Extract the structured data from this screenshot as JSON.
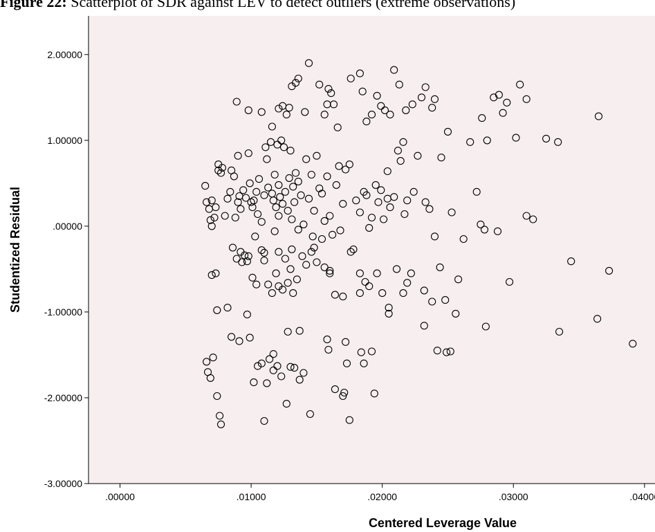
{
  "caption": {
    "lead": "Figure 22:",
    "text": " Scatterplot of SDR against LEV to detect outliers (extreme observations)"
  },
  "chart_data": {
    "type": "scatter",
    "title": "",
    "xlabel": "Centered Leverage Value",
    "ylabel": "Studentized Residual",
    "xlim": [
      -0.0024,
      0.0408
    ],
    "ylim": [
      -3.0,
      2.45
    ],
    "xticks": [
      0.0,
      0.01,
      0.02,
      0.03,
      0.04
    ],
    "xtick_labels": [
      ".00000",
      ".01000",
      ".02000",
      ".03000",
      ".04000"
    ],
    "yticks": [
      -3.0,
      -2.0,
      -1.0,
      0.0,
      1.0,
      2.0
    ],
    "ytick_labels": [
      "-3.00000",
      "-2.00000",
      "-1.00000",
      ".00000",
      "1.00000",
      "2.00000"
    ],
    "grid": false,
    "colors": {
      "plot_bg": "#f6eeef",
      "marker": "#000000",
      "axis": "#000000"
    },
    "points": [
      [
        0.0065,
        0.47
      ],
      [
        0.0066,
        0.28
      ],
      [
        0.0068,
        0.2
      ],
      [
        0.0069,
        0.07
      ],
      [
        0.007,
        0.0
      ],
      [
        0.007,
        0.3
      ],
      [
        0.0072,
        0.1
      ],
      [
        0.0073,
        0.22
      ],
      [
        0.0075,
        0.65
      ],
      [
        0.0075,
        0.72
      ],
      [
        0.0077,
        0.62
      ],
      [
        0.0078,
        0.68
      ],
      [
        0.008,
        0.12
      ],
      [
        0.0082,
        0.32
      ],
      [
        0.0084,
        0.4
      ],
      [
        0.0085,
        0.65
      ],
      [
        0.0087,
        0.58
      ],
      [
        0.0088,
        0.1
      ],
      [
        0.009,
        0.28
      ],
      [
        0.009,
        0.82
      ],
      [
        0.0091,
        0.35
      ],
      [
        0.0092,
        0.2
      ],
      [
        0.0094,
        0.42
      ],
      [
        0.0096,
        0.33
      ],
      [
        0.0098,
        0.85
      ],
      [
        0.0099,
        0.5
      ],
      [
        0.01,
        0.28
      ],
      [
        0.0101,
        0.22
      ],
      [
        0.0102,
        0.3
      ],
      [
        0.0104,
        0.4
      ],
      [
        0.0105,
        0.14
      ],
      [
        0.0106,
        0.55
      ],
      [
        0.0108,
        0.05
      ],
      [
        0.011,
        0.36
      ],
      [
        0.0111,
        0.92
      ],
      [
        0.0112,
        0.78
      ],
      [
        0.0113,
        0.45
      ],
      [
        0.0115,
        0.98
      ],
      [
        0.0116,
        0.38
      ],
      [
        0.0117,
        0.3
      ],
      [
        0.0118,
        0.6
      ],
      [
        0.0119,
        0.22
      ],
      [
        0.012,
        0.95
      ],
      [
        0.0121,
        0.48
      ],
      [
        0.0122,
        0.34
      ],
      [
        0.0123,
        1.0
      ],
      [
        0.0124,
        0.26
      ],
      [
        0.0125,
        0.92
      ],
      [
        0.0126,
        0.4
      ],
      [
        0.0128,
        0.18
      ],
      [
        0.0129,
        0.56
      ],
      [
        0.013,
        0.88
      ],
      [
        0.0131,
        0.08
      ],
      [
        0.0132,
        0.46
      ],
      [
        0.0133,
        0.28
      ],
      [
        0.0134,
        0.62
      ],
      [
        0.0136,
        0.52
      ],
      [
        0.0138,
        0.36
      ],
      [
        0.014,
        0.02
      ],
      [
        0.0142,
        0.78
      ],
      [
        0.0144,
        0.32
      ],
      [
        0.0146,
        0.6
      ],
      [
        0.0148,
        0.18
      ],
      [
        0.015,
        0.82
      ],
      [
        0.0152,
        0.44
      ],
      [
        0.0154,
        0.38
      ],
      [
        0.0156,
        0.06
      ],
      [
        0.0158,
        0.58
      ],
      [
        0.016,
        0.12
      ],
      [
        0.0162,
        -0.1
      ],
      [
        0.0165,
        0.48
      ],
      [
        0.0167,
        0.7
      ],
      [
        0.017,
        0.26
      ],
      [
        0.0172,
        0.66
      ],
      [
        0.0175,
        0.72
      ],
      [
        0.018,
        0.3
      ],
      [
        0.0183,
        0.16
      ],
      [
        0.0186,
        0.4
      ],
      [
        0.0188,
        0.36
      ],
      [
        0.019,
        -0.02
      ],
      [
        0.0192,
        0.1
      ],
      [
        0.0195,
        0.48
      ],
      [
        0.0197,
        0.28
      ],
      [
        0.0199,
        0.42
      ],
      [
        0.0201,
        0.08
      ],
      [
        0.0204,
        0.32
      ],
      [
        0.0206,
        0.22
      ],
      [
        0.0209,
        0.34
      ],
      [
        0.0212,
        0.88
      ],
      [
        0.0214,
        0.76
      ],
      [
        0.0217,
        0.14
      ],
      [
        0.0219,
        0.3
      ],
      [
        0.0224,
        0.4
      ],
      [
        0.0227,
        0.82
      ],
      [
        0.0233,
        0.28
      ],
      [
        0.0236,
        0.2
      ],
      [
        0.024,
        -0.12
      ],
      [
        0.0245,
        0.8
      ],
      [
        0.0253,
        0.16
      ],
      [
        0.0272,
        0.4
      ],
      [
        0.0275,
        0.02
      ],
      [
        0.0278,
        -0.04
      ],
      [
        0.0288,
        -0.06
      ],
      [
        0.031,
        0.12
      ],
      [
        0.0315,
        0.08
      ],
      [
        0.0204,
        0.64
      ],
      [
        0.0168,
        -0.05
      ],
      [
        0.0136,
        -0.04
      ],
      [
        0.0147,
        -0.12
      ],
      [
        0.0121,
        0.12
      ],
      [
        0.0089,
        1.45
      ],
      [
        0.0098,
        1.35
      ],
      [
        0.0108,
        1.33
      ],
      [
        0.0116,
        1.16
      ],
      [
        0.0121,
        1.37
      ],
      [
        0.0124,
        1.4
      ],
      [
        0.0127,
        1.3
      ],
      [
        0.0129,
        1.38
      ],
      [
        0.0131,
        1.63
      ],
      [
        0.0134,
        1.67
      ],
      [
        0.0136,
        1.72
      ],
      [
        0.0141,
        1.33
      ],
      [
        0.0144,
        1.9
      ],
      [
        0.0152,
        1.65
      ],
      [
        0.0156,
        1.3
      ],
      [
        0.0158,
        1.42
      ],
      [
        0.0159,
        1.6
      ],
      [
        0.0161,
        1.55
      ],
      [
        0.0163,
        1.42
      ],
      [
        0.0166,
        1.15
      ],
      [
        0.0176,
        1.72
      ],
      [
        0.0183,
        1.78
      ],
      [
        0.0185,
        1.57
      ],
      [
        0.0188,
        1.22
      ],
      [
        0.0192,
        1.3
      ],
      [
        0.0196,
        1.52
      ],
      [
        0.0199,
        1.4
      ],
      [
        0.0202,
        1.35
      ],
      [
        0.0206,
        1.3
      ],
      [
        0.0209,
        1.82
      ],
      [
        0.0213,
        1.65
      ],
      [
        0.0218,
        1.35
      ],
      [
        0.0223,
        1.42
      ],
      [
        0.023,
        1.5
      ],
      [
        0.0233,
        1.62
      ],
      [
        0.0238,
        1.38
      ],
      [
        0.024,
        1.48
      ],
      [
        0.025,
        1.1
      ],
      [
        0.0267,
        0.98
      ],
      [
        0.0276,
        1.26
      ],
      [
        0.028,
        1.0
      ],
      [
        0.0285,
        1.5
      ],
      [
        0.0289,
        1.53
      ],
      [
        0.0292,
        1.32
      ],
      [
        0.0295,
        1.44
      ],
      [
        0.0302,
        1.03
      ],
      [
        0.0305,
        1.65
      ],
      [
        0.031,
        1.48
      ],
      [
        0.0325,
        1.02
      ],
      [
        0.0334,
        0.98
      ],
      [
        0.0365,
        1.28
      ],
      [
        0.0216,
        0.98
      ],
      [
        0.007,
        -0.57
      ],
      [
        0.0073,
        -0.55
      ],
      [
        0.0074,
        -0.98
      ],
      [
        0.0082,
        -0.95
      ],
      [
        0.0086,
        -0.25
      ],
      [
        0.0089,
        -0.38
      ],
      [
        0.0092,
        -0.3
      ],
      [
        0.0095,
        -0.34
      ],
      [
        0.0098,
        -0.35
      ],
      [
        0.0101,
        -0.6
      ],
      [
        0.0104,
        -0.68
      ],
      [
        0.0108,
        -0.28
      ],
      [
        0.011,
        -0.4
      ],
      [
        0.0113,
        -0.68
      ],
      [
        0.0116,
        -0.78
      ],
      [
        0.0119,
        -0.55
      ],
      [
        0.0121,
        -0.7
      ],
      [
        0.0124,
        -0.74
      ],
      [
        0.0128,
        -0.66
      ],
      [
        0.013,
        -0.5
      ],
      [
        0.0132,
        -0.78
      ],
      [
        0.0135,
        -0.62
      ],
      [
        0.0139,
        -0.35
      ],
      [
        0.0142,
        -0.45
      ],
      [
        0.0146,
        -0.3
      ],
      [
        0.015,
        -0.42
      ],
      [
        0.0156,
        -0.48
      ],
      [
        0.016,
        -0.55
      ],
      [
        0.0164,
        -0.8
      ],
      [
        0.017,
        -0.82
      ],
      [
        0.0176,
        -0.3
      ],
      [
        0.0183,
        -0.78
      ],
      [
        0.0187,
        -0.65
      ],
      [
        0.019,
        -0.7
      ],
      [
        0.0196,
        -0.55
      ],
      [
        0.02,
        -0.78
      ],
      [
        0.0205,
        -1.02
      ],
      [
        0.0211,
        -0.5
      ],
      [
        0.0216,
        -0.78
      ],
      [
        0.0222,
        -0.55
      ],
      [
        0.0232,
        -0.75
      ],
      [
        0.0238,
        -0.88
      ],
      [
        0.0244,
        -0.48
      ],
      [
        0.0248,
        -0.86
      ],
      [
        0.0256,
        -1.02
      ],
      [
        0.0258,
        -0.62
      ],
      [
        0.0279,
        -1.17
      ],
      [
        0.0297,
        -0.65
      ],
      [
        0.0344,
        -0.41
      ],
      [
        0.0364,
        -1.08
      ],
      [
        0.0373,
        -0.52
      ],
      [
        0.0391,
        -1.37
      ],
      [
        0.0335,
        -1.23
      ],
      [
        0.0128,
        -1.23
      ],
      [
        0.0137,
        -1.22
      ],
      [
        0.0097,
        -1.03
      ],
      [
        0.0148,
        -0.25
      ],
      [
        0.0178,
        -0.27
      ],
      [
        0.0103,
        -0.12
      ],
      [
        0.0121,
        -0.3
      ],
      [
        0.0066,
        -1.58
      ],
      [
        0.0067,
        -1.7
      ],
      [
        0.0069,
        -1.77
      ],
      [
        0.0071,
        -1.53
      ],
      [
        0.0074,
        -1.98
      ],
      [
        0.0076,
        -2.21
      ],
      [
        0.0077,
        -2.31
      ],
      [
        0.0085,
        -1.29
      ],
      [
        0.0091,
        -1.34
      ],
      [
        0.0102,
        -1.82
      ],
      [
        0.0105,
        -1.63
      ],
      [
        0.0108,
        -1.6
      ],
      [
        0.011,
        -2.27
      ],
      [
        0.0112,
        -1.83
      ],
      [
        0.0114,
        -1.55
      ],
      [
        0.0117,
        -1.49
      ],
      [
        0.012,
        -1.63
      ],
      [
        0.0123,
        -1.75
      ],
      [
        0.0127,
        -2.07
      ],
      [
        0.013,
        -1.64
      ],
      [
        0.0133,
        -1.65
      ],
      [
        0.0137,
        -1.79
      ],
      [
        0.014,
        -1.71
      ],
      [
        0.0145,
        -2.19
      ],
      [
        0.0158,
        -1.32
      ],
      [
        0.0159,
        -1.44
      ],
      [
        0.0164,
        -1.9
      ],
      [
        0.017,
        -1.98
      ],
      [
        0.0173,
        -1.6
      ],
      [
        0.0175,
        -2.26
      ],
      [
        0.0184,
        -1.47
      ],
      [
        0.0186,
        -1.6
      ],
      [
        0.0192,
        -1.46
      ],
      [
        0.0194,
        -1.95
      ],
      [
        0.0232,
        -1.16
      ],
      [
        0.0242,
        -1.45
      ],
      [
        0.0249,
        -1.47
      ],
      [
        0.0252,
        -1.46
      ],
      [
        0.0172,
        -1.35
      ],
      [
        0.0171,
        -1.94
      ],
      [
        0.0117,
        -1.68
      ],
      [
        0.0099,
        -1.3
      ],
      [
        0.011,
        -0.31
      ],
      [
        0.0093,
        -0.42
      ],
      [
        0.0131,
        -0.27
      ],
      [
        0.0126,
        -0.38
      ],
      [
        0.016,
        -0.52
      ],
      [
        0.0205,
        -0.95
      ],
      [
        0.0262,
        -0.15
      ],
      [
        0.0219,
        -0.66
      ],
      [
        0.0183,
        -0.55
      ],
      [
        0.0154,
        -0.15
      ],
      [
        0.0097,
        -0.41
      ],
      [
        0.0118,
        -0.06
      ]
    ]
  }
}
